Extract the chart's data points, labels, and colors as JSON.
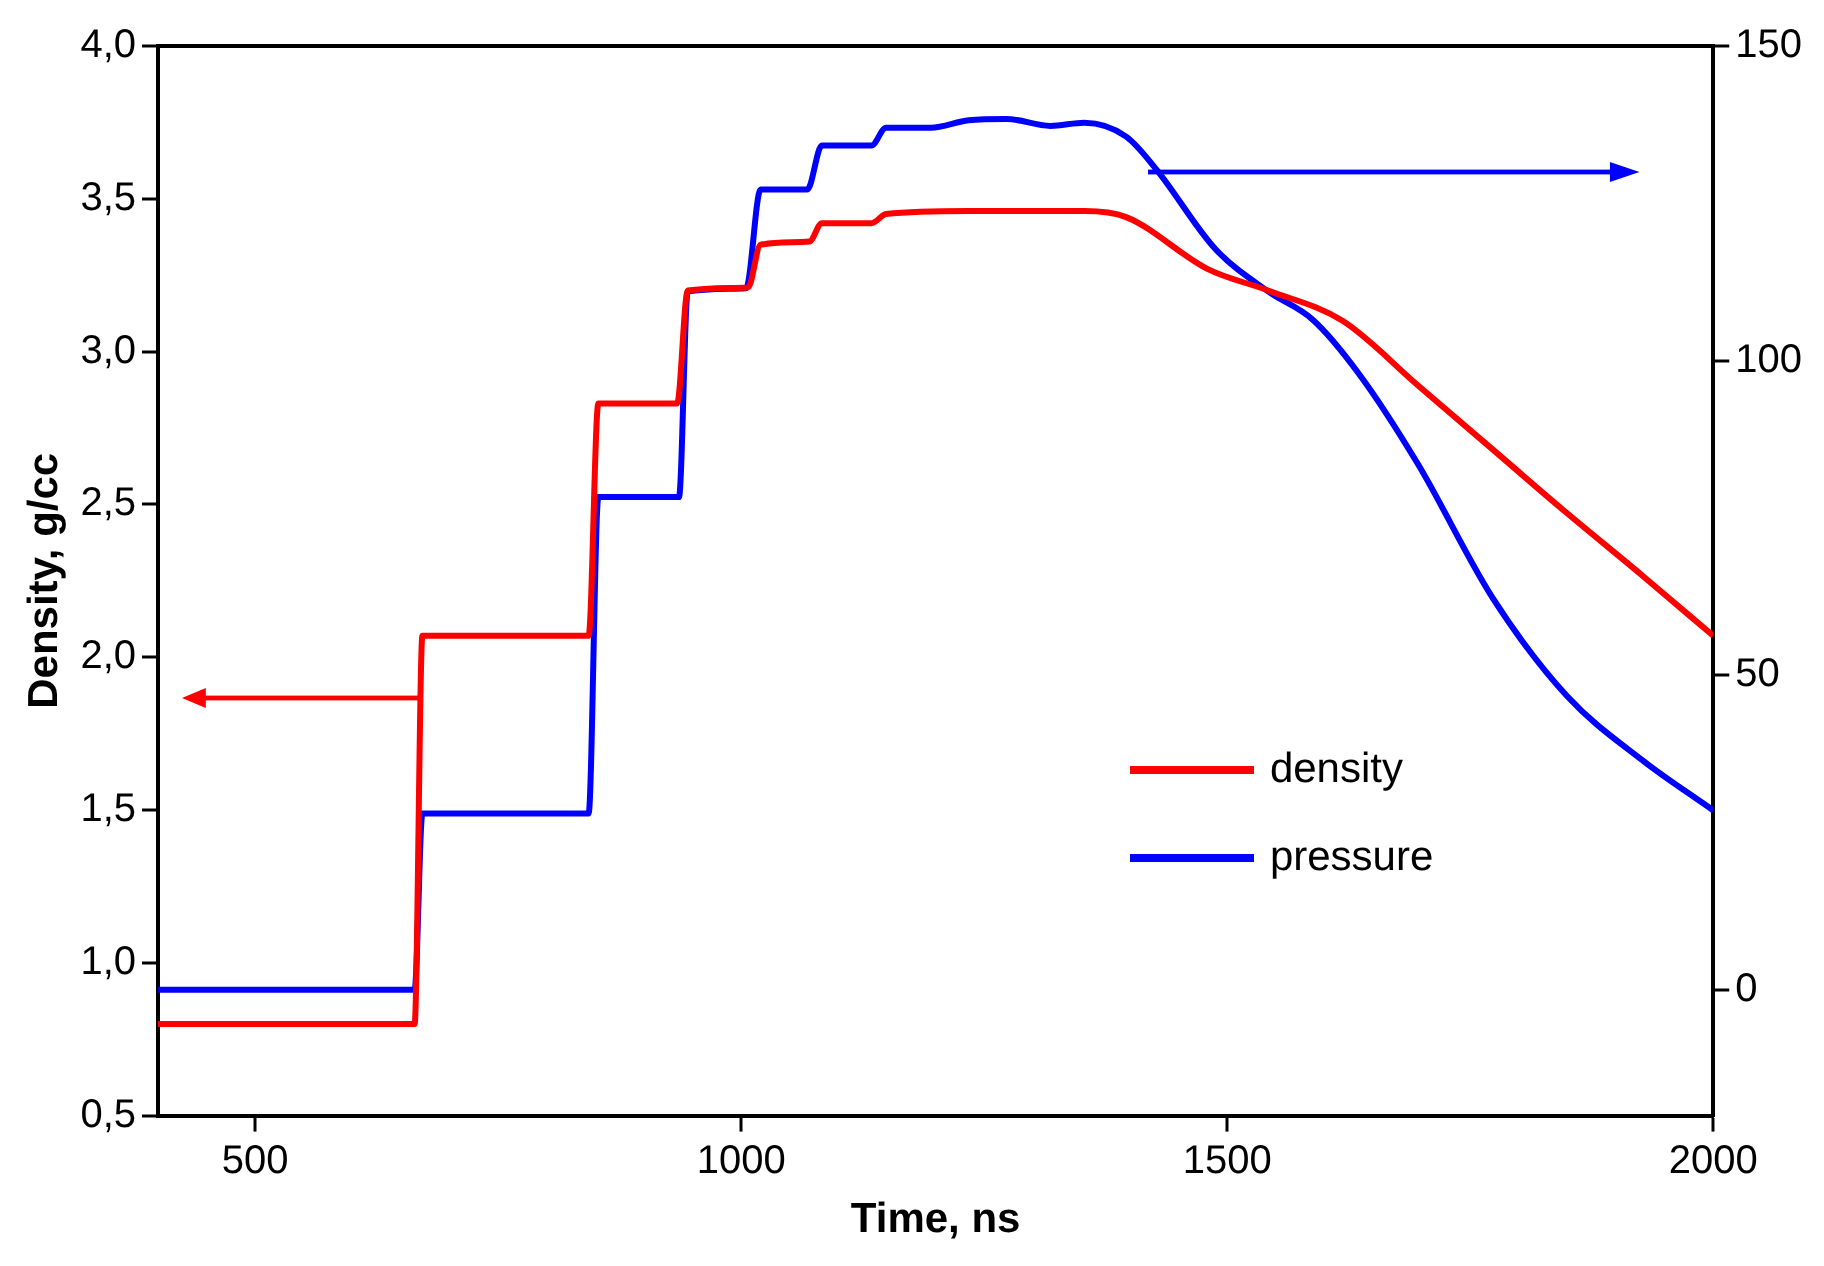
{
  "chart_data": {
    "type": "line",
    "xlabel": "Time, ns",
    "ylabel": "Density, g/cc",
    "xlim": [
      400,
      2000
    ],
    "xticks": [
      500,
      1000,
      1500,
      2000
    ],
    "ylim": [
      0.5,
      4.0
    ],
    "yticks": [
      {
        "value": 0.5,
        "label": "0,5"
      },
      {
        "value": 1.0,
        "label": "1,0"
      },
      {
        "value": 1.5,
        "label": "1,5"
      },
      {
        "value": 2.0,
        "label": "2,0"
      },
      {
        "value": 2.5,
        "label": "2,5"
      },
      {
        "value": 3.0,
        "label": "3,0"
      },
      {
        "value": 3.5,
        "label": "3,5"
      },
      {
        "value": 4.0,
        "label": "4,0"
      }
    ],
    "y2lim": [
      -20,
      150
    ],
    "y2ticks": [
      0,
      50,
      100,
      150
    ],
    "grid": false,
    "legend": "bottom right",
    "line_style": "solid",
    "marker": "none",
    "series": [
      {
        "name": "density",
        "color": "#ff0000",
        "x": [
          400,
          664,
          672,
          843,
          853,
          934,
          945,
          1007,
          1020,
          1070,
          1083,
          1134,
          1149,
          1234,
          1353,
          1396,
          1480,
          1542,
          1619,
          1696,
          1773,
          1850,
          1926,
          2000
        ],
        "values": [
          0.8,
          0.8,
          2.07,
          2.07,
          2.83,
          2.83,
          3.2,
          3.21,
          3.35,
          3.36,
          3.42,
          3.42,
          3.45,
          3.46,
          3.46,
          3.44,
          3.27,
          3.2,
          3.1,
          2.89,
          2.68,
          2.47,
          2.27,
          2.07
        ]
      },
      {
        "name": "pressure",
        "color": "#0000ff",
        "axis": "y2",
        "x": [
          400,
          664,
          672,
          843,
          853,
          936,
          945,
          1005,
          1020,
          1068,
          1083,
          1134,
          1149,
          1195,
          1234,
          1273,
          1318,
          1353,
          1396,
          1426,
          1488,
          1542,
          1588,
          1635,
          1696,
          1773,
          1850,
          1926,
          2000
        ],
        "values": [
          0,
          0,
          28,
          28,
          78.3,
          78.3,
          111,
          111.5,
          127.2,
          127.2,
          134.2,
          134.2,
          137,
          137,
          138.2,
          138.4,
          137.3,
          137.8,
          135.6,
          130.6,
          117.7,
          111,
          106.5,
          98,
          83.6,
          62.3,
          46.6,
          36.6,
          28.5
        ]
      }
    ]
  }
}
